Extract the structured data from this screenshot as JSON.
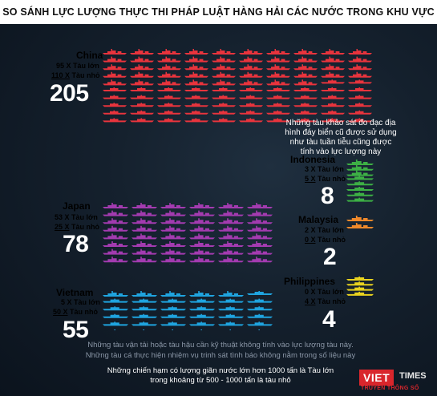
{
  "title": "SO SÁNH LỰC LƯỢNG THỰC THI PHÁP LUẬT HÀNG HẢI CÁC NƯỚC TRONG KHU VỰC",
  "countries": [
    {
      "key": "china",
      "name": "China",
      "large_count": "95 X",
      "large_label": "Tàu lớn",
      "small_count": "110 X",
      "small_label": "Tàu nhỏ",
      "total": "205",
      "large": 95,
      "small": 110,
      "color": "#e8343d"
    },
    {
      "key": "japan",
      "name": "Japan",
      "large_count": "53 X",
      "large_label": "Tàu lớn",
      "small_count": "25 X",
      "small_label": "Tàu nhỏ",
      "total": "78",
      "large": 53,
      "small": 25,
      "color": "#a33bb0"
    },
    {
      "key": "vietnam",
      "name": "Vietnam",
      "large_count": "5 X",
      "large_label": "Tàu lớn",
      "small_count": "50 X",
      "small_label": "Tàu nhỏ",
      "total": "55",
      "large": 5,
      "small": 50,
      "color": "#1fa4df"
    },
    {
      "key": "indonesia",
      "name": "Indonesia",
      "large_count": "3 X",
      "large_label": "Tàu lớn",
      "small_count": "5 X",
      "small_label": "Tàu nhỏ",
      "total": "8",
      "large": 3,
      "small": 5,
      "color": "#3db045"
    },
    {
      "key": "malaysia",
      "name": "Malaysia",
      "large_count": "2 X",
      "large_label": "Tàu lớn",
      "small_count": "0 X",
      "small_label": "Tàu nhỏ",
      "total": "2",
      "large": 2,
      "small": 0,
      "color": "#f0892a"
    },
    {
      "key": "philippines",
      "name": "Philippines",
      "large_count": "0 X",
      "large_label": "Tàu lớn",
      "small_count": "4 X",
      "small_label": "Tàu nhỏ",
      "total": "4",
      "large": 0,
      "small": 4,
      "color": "#e8d21f"
    }
  ],
  "note_indonesia": "Những tàu khảo sát đo đạc địa hình đáy biển cũ được sử dụng như tàu tuần tiễu cũng được tính vào lực lượng này",
  "footnotes": {
    "line1": "Những tàu vận tải hoặc tàu hậu cần kỹ thuật không tính vào lực lượng tàu này.",
    "line2": "Những tàu cá thực hiện nhiệm vụ trinh sát tình báo không nằm trong số liệu này",
    "line3": "Những chiến hạm có lượng giãn nước lớn hơn 1000 tấn là Tàu lớn",
    "line4": "trong khoảng từ 500 - 1000 tấn là tàu nhỏ"
  },
  "logo": {
    "viet": "VIET",
    "times": "TIMES",
    "sub": "TRUYỀN THÔNG SỐ"
  }
}
